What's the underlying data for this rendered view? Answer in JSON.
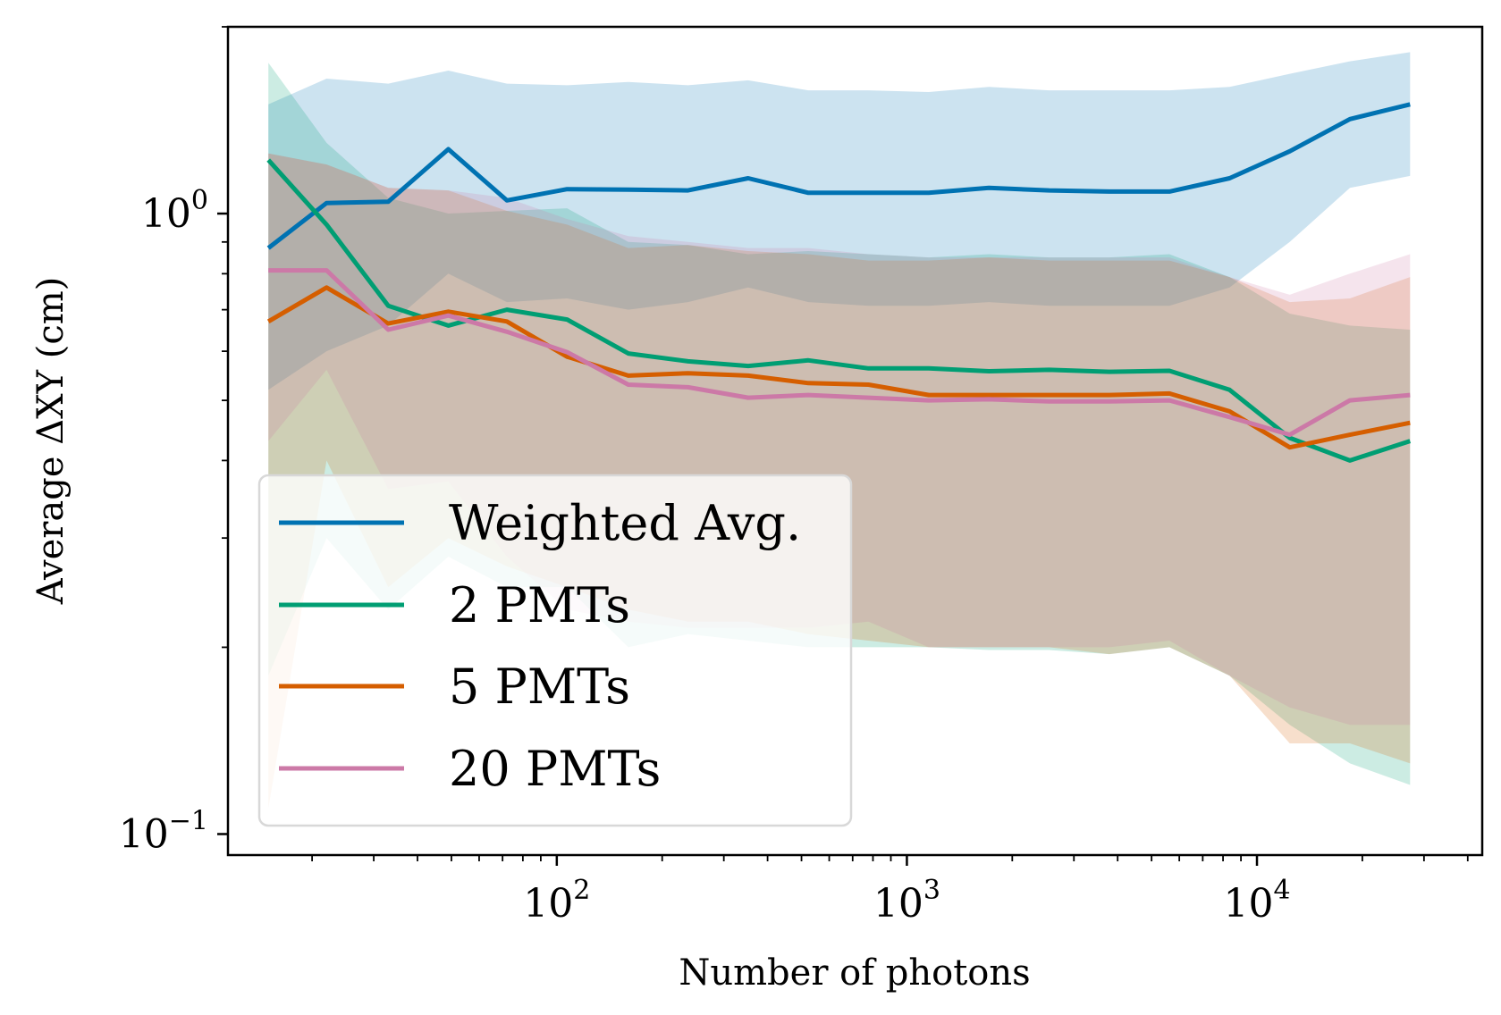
{
  "chart_data": {
    "type": "line",
    "xlabel": "Number of photons",
    "ylabel": "Average ΔXY (cm)",
    "xscale": "log",
    "yscale": "log",
    "xlim": [
      11.5,
      44000
    ],
    "ylim": [
      0.0925,
      2.0
    ],
    "x_ticks": [
      {
        "value": 100,
        "base": "10",
        "exp": "2"
      },
      {
        "value": 1000,
        "base": "10",
        "exp": "3"
      },
      {
        "value": 10000,
        "base": "10",
        "exp": "4"
      }
    ],
    "y_ticks": [
      {
        "value": 1.0,
        "base": "10",
        "exp": "0"
      },
      {
        "value": 0.1,
        "base": "10",
        "exp": "−1"
      }
    ],
    "grid": false,
    "legend_position": "bottom-left",
    "x": [
      15,
      22,
      33,
      49,
      72,
      107,
      160,
      237,
      352,
      523,
      777,
      1155,
      1715,
      2548,
      3785,
      5623,
      8353,
      12409,
      18434,
      27384
    ],
    "series": [
      {
        "name": "Weighted Avg.",
        "color": "#0072b2",
        "band_color": "#0072b2",
        "values": [
          0.88,
          1.04,
          1.045,
          1.27,
          1.05,
          1.095,
          1.093,
          1.09,
          1.14,
          1.08,
          1.08,
          1.08,
          1.1,
          1.09,
          1.085,
          1.085,
          1.14,
          1.26,
          1.42,
          1.5
        ],
        "lower": [
          0.52,
          0.6,
          0.66,
          0.8,
          0.72,
          0.73,
          0.7,
          0.72,
          0.76,
          0.72,
          0.71,
          0.71,
          0.72,
          0.71,
          0.71,
          0.71,
          0.76,
          0.9,
          1.1,
          1.15
        ],
        "upper": [
          1.5,
          1.65,
          1.62,
          1.7,
          1.62,
          1.61,
          1.63,
          1.61,
          1.64,
          1.58,
          1.58,
          1.57,
          1.6,
          1.58,
          1.58,
          1.58,
          1.6,
          1.68,
          1.76,
          1.82
        ]
      },
      {
        "name": "2 PMTs",
        "color": "#009e73",
        "band_color": "#009e73",
        "values": [
          1.22,
          0.96,
          0.71,
          0.66,
          0.7,
          0.675,
          0.595,
          0.578,
          0.568,
          0.58,
          0.563,
          0.563,
          0.557,
          0.56,
          0.556,
          0.558,
          0.52,
          0.435,
          0.4,
          0.43
        ],
        "lower": [
          0.18,
          0.3,
          0.23,
          0.28,
          0.25,
          0.25,
          0.2,
          0.21,
          0.205,
          0.2,
          0.2,
          0.2,
          0.198,
          0.198,
          0.195,
          0.2,
          0.18,
          0.15,
          0.13,
          0.12
        ],
        "upper": [
          1.75,
          1.3,
          1.06,
          1.0,
          1.01,
          1.02,
          0.9,
          0.89,
          0.86,
          0.87,
          0.86,
          0.85,
          0.86,
          0.85,
          0.85,
          0.86,
          0.79,
          0.69,
          0.66,
          0.65
        ]
      },
      {
        "name": "5 PMTs",
        "color": "#d55e00",
        "band_color": "#d55e00",
        "values": [
          0.67,
          0.76,
          0.665,
          0.695,
          0.67,
          0.588,
          0.548,
          0.553,
          0.548,
          0.533,
          0.53,
          0.51,
          0.51,
          0.51,
          0.51,
          0.513,
          0.48,
          0.42,
          0.44,
          0.46
        ],
        "lower": [
          0.11,
          0.4,
          0.25,
          0.3,
          0.27,
          0.25,
          0.23,
          0.22,
          0.22,
          0.21,
          0.205,
          0.2,
          0.2,
          0.2,
          0.195,
          0.2,
          0.18,
          0.14,
          0.14,
          0.13
        ],
        "upper": [
          1.25,
          1.2,
          1.1,
          1.09,
          1.01,
          0.96,
          0.88,
          0.89,
          0.87,
          0.86,
          0.84,
          0.84,
          0.85,
          0.84,
          0.84,
          0.84,
          0.79,
          0.72,
          0.73,
          0.79
        ]
      },
      {
        "name": "20 PMTs",
        "color": "#cc79a7",
        "band_color": "#cc79a7",
        "values": [
          0.81,
          0.81,
          0.65,
          0.685,
          0.645,
          0.598,
          0.53,
          0.525,
          0.505,
          0.51,
          0.505,
          0.5,
          0.502,
          0.498,
          0.498,
          0.5,
          0.47,
          0.44,
          0.5,
          0.51
        ],
        "lower": [
          0.43,
          0.56,
          0.36,
          0.37,
          0.28,
          0.23,
          0.22,
          0.215,
          0.215,
          0.215,
          0.22,
          0.2,
          0.2,
          0.2,
          0.2,
          0.205,
          0.18,
          0.16,
          0.15,
          0.15
        ],
        "upper": [
          1.25,
          1.2,
          1.1,
          1.09,
          1.06,
          0.98,
          0.92,
          0.9,
          0.88,
          0.88,
          0.86,
          0.85,
          0.85,
          0.85,
          0.85,
          0.85,
          0.79,
          0.74,
          0.8,
          0.86
        ]
      }
    ]
  }
}
